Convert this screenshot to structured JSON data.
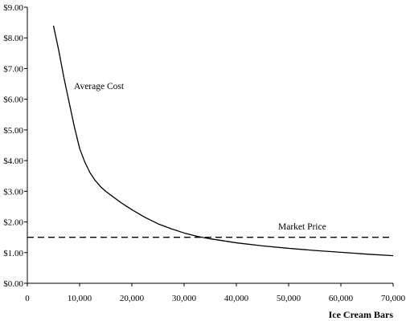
{
  "chart_data": {
    "type": "line",
    "xlabel": "Ice Cream Bars",
    "ylabel": "",
    "xlim": [
      0,
      70000
    ],
    "ylim": [
      0,
      9
    ],
    "x_ticks": [
      0,
      10000,
      20000,
      30000,
      40000,
      50000,
      60000,
      70000
    ],
    "x_tick_labels": [
      "0",
      "10,000",
      "20,000",
      "30,000",
      "40,000",
      "50,000",
      "60,000",
      "70,000"
    ],
    "y_ticks": [
      0,
      1,
      2,
      3,
      4,
      5,
      6,
      7,
      8,
      9
    ],
    "y_tick_labels": [
      "$0.00",
      "$1.00",
      "$2.00",
      "$3.00",
      "$4.00",
      "$5.00",
      "$6.00",
      "$7.00",
      "$8.00",
      "$9.00"
    ],
    "grid": false,
    "series": [
      {
        "name": "Average Cost",
        "style": "solid",
        "color": "#000000",
        "x": [
          5000,
          6000,
          7000,
          8000,
          9000,
          10000,
          11000,
          12000,
          13000,
          14000,
          15000,
          16000,
          18000,
          20000,
          22500,
          25000,
          27500,
          30000,
          32500,
          35000,
          40000,
          45000,
          50000,
          55000,
          60000,
          65000,
          70000
        ],
        "y": [
          8.4,
          7.6,
          6.7,
          5.9,
          5.1,
          4.4,
          3.95,
          3.6,
          3.35,
          3.15,
          3.0,
          2.87,
          2.62,
          2.4,
          2.15,
          1.94,
          1.78,
          1.64,
          1.53,
          1.45,
          1.32,
          1.22,
          1.14,
          1.07,
          1.01,
          0.95,
          0.9
        ]
      },
      {
        "name": "Market Price",
        "style": "dashed",
        "color": "#000000",
        "x": [
          0,
          70000
        ],
        "y": [
          1.5,
          1.5
        ]
      }
    ],
    "annotations": {
      "average_cost": "Average Cost",
      "market_price": "Market Price"
    }
  }
}
